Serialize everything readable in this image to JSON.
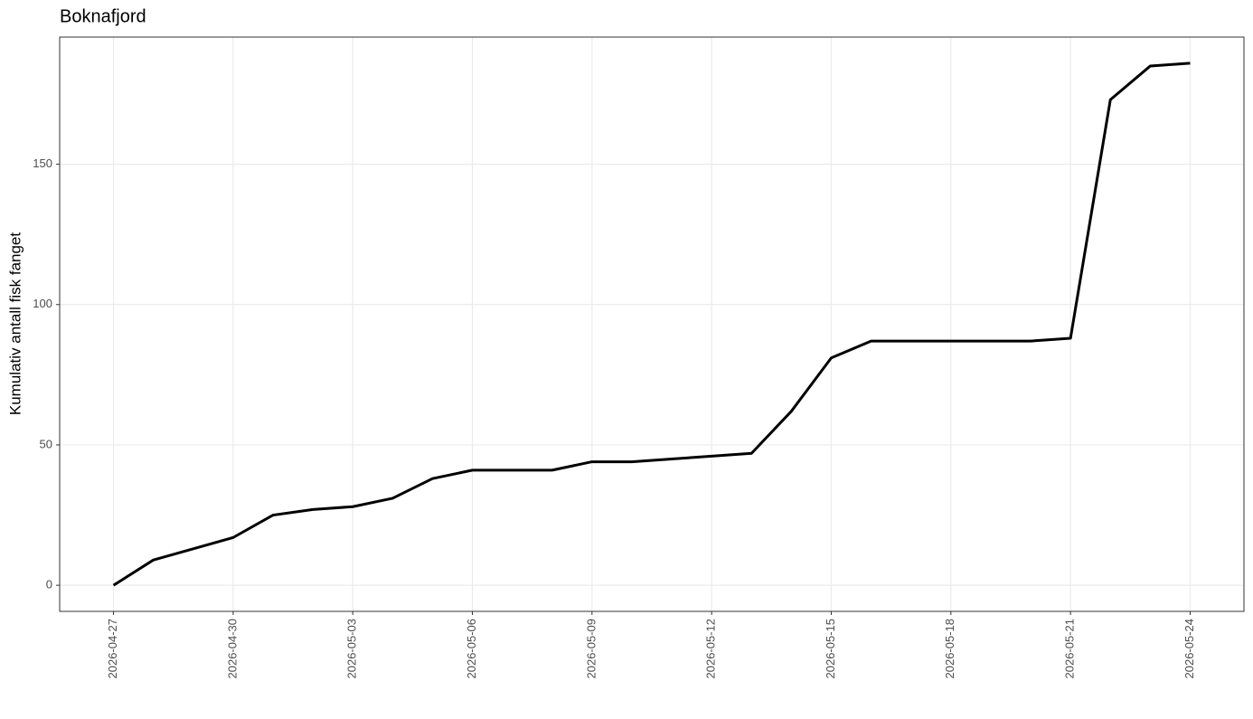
{
  "chart_data": {
    "type": "line",
    "title": "Boknafjord",
    "y_label": "Kumulativ antall fisk fanget",
    "x": [
      "2026-04-27",
      "2026-04-28",
      "2026-04-29",
      "2026-04-30",
      "2026-05-01",
      "2026-05-02",
      "2026-05-03",
      "2026-05-04",
      "2026-05-05",
      "2026-05-06",
      "2026-05-07",
      "2026-05-08",
      "2026-05-09",
      "2026-05-10",
      "2026-05-11",
      "2026-05-12",
      "2026-05-13",
      "2026-05-14",
      "2026-05-15",
      "2026-05-16",
      "2026-05-17",
      "2026-05-18",
      "2026-05-19",
      "2026-05-20",
      "2026-05-21",
      "2026-05-22",
      "2026-05-23",
      "2026-05-24"
    ],
    "values": [
      0,
      9,
      13,
      17,
      25,
      27,
      28,
      31,
      38,
      41,
      41,
      41,
      44,
      44,
      45,
      46,
      47,
      62,
      81,
      87,
      87,
      87,
      87,
      87,
      88,
      173,
      185,
      186
    ],
    "color": "#000000",
    "xlim": [
      "2026-04-25T15:36",
      "2026-05-25T08:24"
    ],
    "xticks": [
      "2026-04-27",
      "2026-04-30",
      "2026-05-03",
      "2026-05-06",
      "2026-05-09",
      "2026-05-12",
      "2026-05-15",
      "2026-05-18",
      "2026-05-21",
      "2026-05-24"
    ],
    "ylim": [
      -9.3,
      195.3
    ],
    "yticks": [
      0,
      50,
      100,
      150
    ],
    "grid": true
  }
}
